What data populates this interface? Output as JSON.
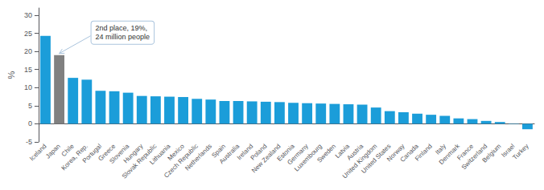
{
  "chart_data": {
    "type": "bar",
    "categories": [
      "Iceland",
      "Japan",
      "Chile",
      "Korea, Rep.",
      "Portugal",
      "Greece",
      "Slovenia",
      "Hungary",
      "Slovak Republic",
      "Lithuania",
      "Mexico",
      "Czech Republic",
      "Netherlands",
      "Spain",
      "Australia",
      "Ireland",
      "Poland",
      "New Zealand",
      "Estonia",
      "Germany",
      "Luxembourg",
      "Sweden",
      "Latvia",
      "Austria",
      "United Kingdom",
      "United States",
      "Norway",
      "Canada",
      "Finland",
      "Italy",
      "Denmark",
      "France",
      "Switzerland",
      "Belgium",
      "Israel",
      "Turkey"
    ],
    "values": [
      24.3,
      19.0,
      12.7,
      12.2,
      9.1,
      9.0,
      8.6,
      7.7,
      7.6,
      7.5,
      7.4,
      6.9,
      6.7,
      6.3,
      6.3,
      6.2,
      6.1,
      6.0,
      5.8,
      5.7,
      5.6,
      5.5,
      5.4,
      5.3,
      4.5,
      3.5,
      3.2,
      2.8,
      2.5,
      2.2,
      1.5,
      1.3,
      0.8,
      0.5,
      0.1,
      -1.5
    ],
    "colors": [
      "#1b9dd9",
      "#808080",
      "#1b9dd9",
      "#1b9dd9",
      "#1b9dd9",
      "#1b9dd9",
      "#1b9dd9",
      "#1b9dd9",
      "#1b9dd9",
      "#1b9dd9",
      "#1b9dd9",
      "#1b9dd9",
      "#1b9dd9",
      "#1b9dd9",
      "#1b9dd9",
      "#1b9dd9",
      "#1b9dd9",
      "#1b9dd9",
      "#1b9dd9",
      "#1b9dd9",
      "#1b9dd9",
      "#1b9dd9",
      "#1b9dd9",
      "#1b9dd9",
      "#1b9dd9",
      "#1b9dd9",
      "#1b9dd9",
      "#1b9dd9",
      "#1b9dd9",
      "#1b9dd9",
      "#1b9dd9",
      "#1b9dd9",
      "#1b9dd9",
      "#1b9dd9",
      "#1b9dd9",
      "#1b9dd9"
    ],
    "ylabel": "%",
    "ylim": [
      -5,
      32
    ],
    "yticks": [
      -5,
      0,
      5,
      10,
      15,
      20,
      25,
      30
    ],
    "grid": false,
    "annotations": [
      {
        "text": "2nd place, 19%,\n24 million people",
        "x": "Japan"
      }
    ]
  }
}
